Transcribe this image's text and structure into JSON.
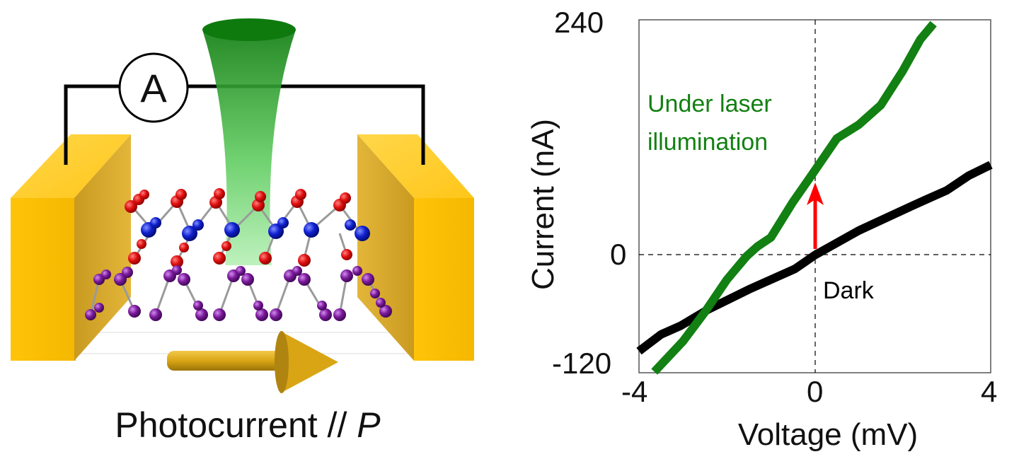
{
  "schematic": {
    "ammeter_label": "A",
    "caption_main": "Photocurrent //",
    "caption_italic": "P",
    "colors": {
      "electrode": "#f5b800",
      "electrode_side": "#c99a20",
      "laser": "#1f8c1f",
      "laser_light": "#9de89d",
      "atom_red": "#e01010",
      "atom_blue": "#1020d0",
      "atom_purple": "#7a1a9a",
      "bond": "#9a9a9a",
      "arrow": "#d9a515",
      "wire": "#000000"
    }
  },
  "chart_data": {
    "type": "line",
    "title": "",
    "xlabel": "Voltage (mV)",
    "ylabel": "Current (nA)",
    "xlim": [
      -4,
      4
    ],
    "ylim": [
      -120,
      240
    ],
    "xticks": [
      "-4",
      "0",
      "4"
    ],
    "yticks": [
      "240",
      "0",
      "-120"
    ],
    "grid": false,
    "reference_lines": [
      {
        "axis": "x",
        "value": 0,
        "style": "dashed"
      },
      {
        "axis": "y",
        "value": 0,
        "style": "dashed"
      }
    ],
    "series": [
      {
        "name": "Under laser illumination",
        "color": "#128012",
        "x": [
          -3.65,
          -3.0,
          -2.5,
          -2.0,
          -1.55,
          -1.3,
          -1.0,
          -0.5,
          -0.05,
          0.5,
          1.0,
          1.5,
          2.0,
          2.4,
          2.7
        ],
        "y": [
          -119,
          -88,
          -58,
          -25,
          -1,
          9,
          18,
          54,
          83,
          119,
          133,
          153,
          188,
          220,
          236
        ]
      },
      {
        "name": "Dark",
        "color": "#000000",
        "x": [
          -4.0,
          -3.5,
          -3.05,
          -2.45,
          -1.5,
          -0.45,
          0.0,
          1.0,
          2.2,
          2.5,
          3.0,
          3.5,
          4.0
        ],
        "y": [
          -98,
          -81,
          -72,
          -56,
          -35,
          -14,
          0,
          25,
          50,
          56,
          66,
          81,
          92
        ]
      }
    ],
    "annotations": [
      {
        "text": "Under laser\nillumination",
        "color": "#128012",
        "line1": "Under laser",
        "line2": "illumination"
      },
      {
        "text": "Dark",
        "color": "#000000"
      },
      {
        "type": "arrow",
        "color": "#ff0000",
        "x": 0,
        "from_y": 5,
        "to_y": 75
      }
    ]
  }
}
